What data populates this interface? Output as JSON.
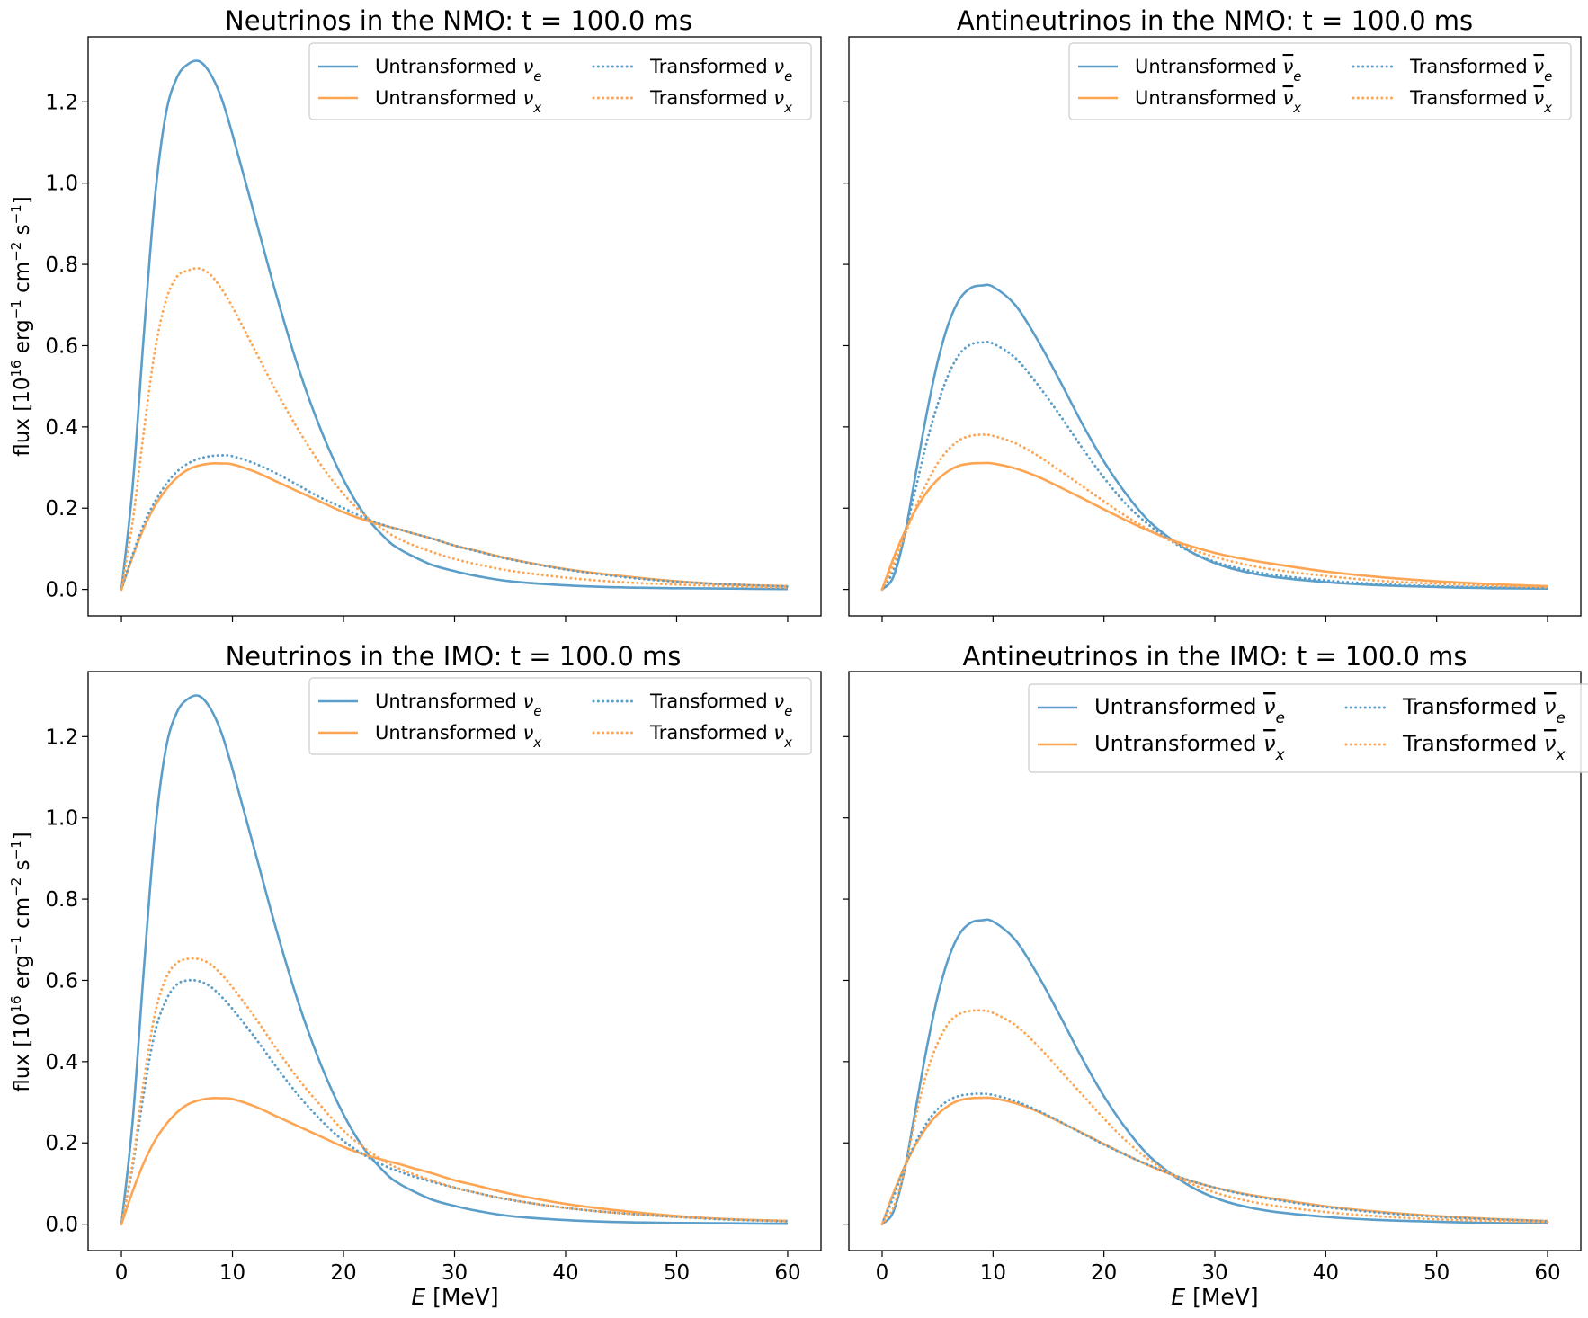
{
  "figure": {
    "xlabel": "E [MeV]",
    "ylabel": "flux [10^16 erg^-1 cm^-2 s^-1]"
  },
  "colors": {
    "nu_e": "#5b9ec9",
    "nu_x": "#fda553"
  },
  "chart_data": [
    {
      "type": "line",
      "title": "Neutrinos in the NMO: t = 100.0 ms",
      "xlabel": "",
      "ylabel": "flux [10^16 erg^-1 cm^-2 s^-1]",
      "xlim": [
        -3,
        63
      ],
      "ylim": [
        -0.065,
        1.36
      ],
      "xticks": [
        0,
        10,
        20,
        30,
        40,
        50,
        60
      ],
      "yticks": [
        0.0,
        0.2,
        0.4,
        0.6,
        0.8,
        1.0,
        1.2
      ],
      "legend": {
        "position": "upper-right",
        "ncol": 2
      },
      "x": [
        0,
        1,
        2,
        3,
        4,
        5,
        6,
        7,
        8,
        9,
        10,
        12,
        14,
        16,
        18,
        20,
        22,
        24,
        25,
        26,
        28,
        30,
        32,
        35,
        40,
        45,
        50,
        55,
        60
      ],
      "series": [
        {
          "name": "Untransformed νe",
          "flavor": "nu_e",
          "style": "solid",
          "values": [
            0,
            0.25,
            0.62,
            0.96,
            1.17,
            1.26,
            1.293,
            1.3,
            1.27,
            1.21,
            1.12,
            0.92,
            0.72,
            0.54,
            0.39,
            0.27,
            0.18,
            0.12,
            0.1,
            0.085,
            0.06,
            0.045,
            0.033,
            0.02,
            0.01,
            0.005,
            0.003,
            0.002,
            0.001
          ]
        },
        {
          "name": "Untransformed νx",
          "flavor": "nu_x",
          "style": "solid",
          "values": [
            0,
            0.08,
            0.15,
            0.205,
            0.245,
            0.275,
            0.295,
            0.305,
            0.31,
            0.31,
            0.308,
            0.29,
            0.265,
            0.24,
            0.215,
            0.19,
            0.17,
            0.155,
            0.148,
            0.14,
            0.125,
            0.108,
            0.095,
            0.075,
            0.05,
            0.033,
            0.02,
            0.012,
            0.008
          ]
        },
        {
          "name": "Transformed νe",
          "flavor": "nu_e",
          "style": "dotted",
          "values": [
            0,
            0.085,
            0.16,
            0.215,
            0.258,
            0.29,
            0.31,
            0.322,
            0.328,
            0.33,
            0.328,
            0.31,
            0.285,
            0.255,
            0.225,
            0.2,
            0.175,
            0.155,
            0.148,
            0.14,
            0.125,
            0.108,
            0.094,
            0.074,
            0.049,
            0.031,
            0.019,
            0.012,
            0.007
          ]
        },
        {
          "name": "Transformed νx",
          "flavor": "nu_x",
          "style": "dotted",
          "values": [
            0,
            0.165,
            0.385,
            0.585,
            0.71,
            0.77,
            0.785,
            0.79,
            0.775,
            0.74,
            0.695,
            0.59,
            0.485,
            0.39,
            0.305,
            0.235,
            0.18,
            0.14,
            0.125,
            0.112,
            0.092,
            0.075,
            0.062,
            0.046,
            0.029,
            0.018,
            0.012,
            0.008,
            0.004
          ]
        }
      ]
    },
    {
      "type": "line",
      "title": "Antineutrinos in the NMO: t = 100.0 ms",
      "xlabel": "",
      "ylabel": "",
      "xlim": [
        -3,
        63
      ],
      "ylim": [
        -0.065,
        1.36
      ],
      "xticks": [
        0,
        10,
        20,
        30,
        40,
        50,
        60
      ],
      "yticks": [
        0.0,
        0.2,
        0.4,
        0.6,
        0.8,
        1.0,
        1.2
      ],
      "legend": {
        "position": "upper-right",
        "ncol": 2
      },
      "x": [
        0,
        1,
        2,
        3,
        4,
        5,
        6,
        7,
        8,
        9,
        10,
        12,
        14,
        16,
        18,
        20,
        22,
        24,
        26,
        28,
        30,
        32,
        35,
        40,
        45,
        50,
        55,
        60
      ],
      "series": [
        {
          "name": "Untransformed ν̄e",
          "flavor": "nu_e",
          "style": "solid",
          "values": [
            0,
            0.03,
            0.13,
            0.28,
            0.43,
            0.56,
            0.655,
            0.715,
            0.742,
            0.748,
            0.745,
            0.7,
            0.615,
            0.515,
            0.41,
            0.315,
            0.235,
            0.17,
            0.125,
            0.09,
            0.065,
            0.048,
            0.032,
            0.018,
            0.01,
            0.006,
            0.003,
            0.002
          ]
        },
        {
          "name": "Untransformed ν̄x",
          "flavor": "nu_x",
          "style": "solid",
          "values": [
            0,
            0.075,
            0.14,
            0.195,
            0.238,
            0.27,
            0.292,
            0.305,
            0.31,
            0.311,
            0.31,
            0.298,
            0.278,
            0.252,
            0.225,
            0.197,
            0.17,
            0.145,
            0.123,
            0.105,
            0.09,
            0.078,
            0.064,
            0.044,
            0.03,
            0.02,
            0.013,
            0.008
          ]
        },
        {
          "name": "Transformed ν̄e",
          "flavor": "nu_e",
          "style": "dotted",
          "values": [
            0,
            0.045,
            0.13,
            0.245,
            0.36,
            0.455,
            0.53,
            0.58,
            0.603,
            0.608,
            0.605,
            0.57,
            0.505,
            0.43,
            0.35,
            0.275,
            0.21,
            0.16,
            0.12,
            0.09,
            0.068,
            0.053,
            0.037,
            0.022,
            0.013,
            0.008,
            0.005,
            0.003
          ]
        },
        {
          "name": "Transformed ν̄x",
          "flavor": "nu_x",
          "style": "dotted",
          "values": [
            0,
            0.06,
            0.13,
            0.2,
            0.26,
            0.31,
            0.345,
            0.368,
            0.378,
            0.381,
            0.378,
            0.36,
            0.33,
            0.293,
            0.255,
            0.217,
            0.18,
            0.148,
            0.12,
            0.098,
            0.08,
            0.066,
            0.05,
            0.033,
            0.021,
            0.014,
            0.009,
            0.005
          ]
        }
      ]
    },
    {
      "type": "line",
      "title": "Neutrinos in the IMO: t = 100.0 ms",
      "xlabel": "E [MeV]",
      "ylabel": "flux [10^16 erg^-1 cm^-2 s^-1]",
      "xlim": [
        -3,
        63
      ],
      "ylim": [
        -0.065,
        1.36
      ],
      "xticks": [
        0,
        10,
        20,
        30,
        40,
        50,
        60
      ],
      "yticks": [
        0.0,
        0.2,
        0.4,
        0.6,
        0.8,
        1.0,
        1.2
      ],
      "legend": {
        "position": "upper-right",
        "ncol": 2
      },
      "x": [
        0,
        1,
        2,
        3,
        4,
        5,
        6,
        7,
        8,
        9,
        10,
        12,
        14,
        16,
        18,
        20,
        22,
        24,
        25,
        26,
        28,
        30,
        32,
        35,
        40,
        45,
        50,
        55,
        60
      ],
      "series": [
        {
          "name": "Untransformed νe",
          "flavor": "nu_e",
          "style": "solid",
          "values": [
            0,
            0.25,
            0.62,
            0.96,
            1.17,
            1.26,
            1.293,
            1.3,
            1.27,
            1.21,
            1.12,
            0.92,
            0.72,
            0.54,
            0.39,
            0.27,
            0.18,
            0.12,
            0.1,
            0.085,
            0.06,
            0.045,
            0.033,
            0.02,
            0.01,
            0.005,
            0.003,
            0.002,
            0.001
          ]
        },
        {
          "name": "Untransformed νx",
          "flavor": "nu_x",
          "style": "solid",
          "values": [
            0,
            0.08,
            0.15,
            0.205,
            0.245,
            0.275,
            0.295,
            0.305,
            0.31,
            0.31,
            0.308,
            0.29,
            0.265,
            0.24,
            0.215,
            0.19,
            0.17,
            0.155,
            0.148,
            0.14,
            0.125,
            0.108,
            0.095,
            0.075,
            0.05,
            0.033,
            0.02,
            0.012,
            0.008
          ]
        },
        {
          "name": "Transformed νe",
          "flavor": "nu_e",
          "style": "dotted",
          "values": [
            0,
            0.14,
            0.32,
            0.47,
            0.55,
            0.59,
            0.6,
            0.598,
            0.585,
            0.56,
            0.53,
            0.46,
            0.385,
            0.315,
            0.255,
            0.205,
            0.168,
            0.14,
            0.13,
            0.12,
            0.104,
            0.09,
            0.077,
            0.06,
            0.04,
            0.027,
            0.018,
            0.011,
            0.007
          ]
        },
        {
          "name": "Transformed νx",
          "flavor": "nu_x",
          "style": "dotted",
          "values": [
            0,
            0.15,
            0.35,
            0.515,
            0.605,
            0.643,
            0.653,
            0.652,
            0.64,
            0.615,
            0.583,
            0.51,
            0.43,
            0.355,
            0.29,
            0.23,
            0.185,
            0.15,
            0.137,
            0.126,
            0.107,
            0.09,
            0.077,
            0.06,
            0.04,
            0.027,
            0.018,
            0.012,
            0.007
          ]
        }
      ]
    },
    {
      "type": "line",
      "title": "Antineutrinos in the IMO: t = 100.0 ms",
      "xlabel": "E [MeV]",
      "ylabel": "",
      "xlim": [
        -3,
        63
      ],
      "ylim": [
        -0.065,
        1.36
      ],
      "xticks": [
        0,
        10,
        20,
        30,
        40,
        50,
        60
      ],
      "yticks": [
        0.0,
        0.2,
        0.4,
        0.6,
        0.8,
        1.0,
        1.2
      ],
      "legend": {
        "position": "upper-right",
        "ncol": 2
      },
      "x": [
        0,
        1,
        2,
        3,
        4,
        5,
        6,
        7,
        8,
        9,
        10,
        12,
        14,
        16,
        18,
        20,
        22,
        24,
        26,
        28,
        30,
        32,
        35,
        40,
        45,
        50,
        55,
        60
      ],
      "series": [
        {
          "name": "Untransformed ν̄e",
          "flavor": "nu_e",
          "style": "solid",
          "values": [
            0,
            0.03,
            0.13,
            0.28,
            0.43,
            0.56,
            0.655,
            0.715,
            0.742,
            0.748,
            0.745,
            0.7,
            0.615,
            0.515,
            0.41,
            0.315,
            0.235,
            0.17,
            0.125,
            0.09,
            0.065,
            0.048,
            0.032,
            0.018,
            0.01,
            0.006,
            0.003,
            0.002
          ]
        },
        {
          "name": "Untransformed ν̄x",
          "flavor": "nu_x",
          "style": "solid",
          "values": [
            0,
            0.075,
            0.14,
            0.195,
            0.238,
            0.27,
            0.292,
            0.305,
            0.31,
            0.311,
            0.31,
            0.298,
            0.278,
            0.252,
            0.225,
            0.197,
            0.17,
            0.145,
            0.123,
            0.105,
            0.09,
            0.078,
            0.064,
            0.044,
            0.03,
            0.02,
            0.013,
            0.008
          ]
        },
        {
          "name": "Transformed ν̄e",
          "flavor": "nu_e",
          "style": "dotted",
          "values": [
            0,
            0.065,
            0.138,
            0.2,
            0.248,
            0.283,
            0.305,
            0.316,
            0.32,
            0.321,
            0.318,
            0.303,
            0.28,
            0.253,
            0.224,
            0.196,
            0.17,
            0.146,
            0.124,
            0.105,
            0.09,
            0.077,
            0.062,
            0.042,
            0.028,
            0.018,
            0.012,
            0.007
          ]
        },
        {
          "name": "Transformed ν̄x",
          "flavor": "nu_x",
          "style": "dotted",
          "values": [
            0,
            0.04,
            0.13,
            0.26,
            0.37,
            0.445,
            0.495,
            0.518,
            0.525,
            0.526,
            0.52,
            0.49,
            0.44,
            0.38,
            0.32,
            0.26,
            0.205,
            0.16,
            0.125,
            0.098,
            0.078,
            0.063,
            0.047,
            0.03,
            0.019,
            0.012,
            0.008,
            0.005
          ]
        }
      ]
    }
  ]
}
